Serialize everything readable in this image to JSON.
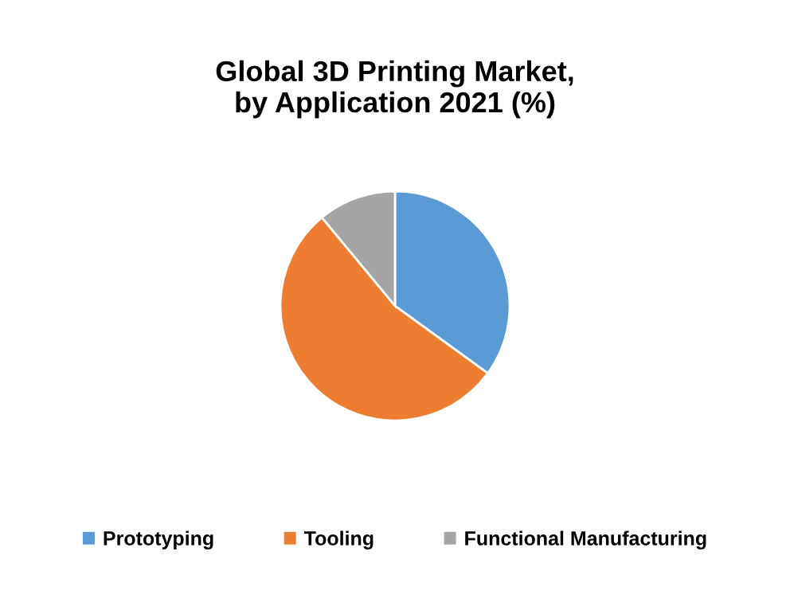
{
  "chart_data": {
    "type": "pie",
    "title": "Global 3D Printing Market,\nby Application 2021 (%)",
    "categories": [
      "Prototyping",
      "Tooling",
      "Functional Manufacturing"
    ],
    "values": [
      35,
      54,
      11
    ],
    "colors": [
      "#5b9bd5",
      "#ed7d31",
      "#a5a5a5"
    ],
    "legend": "bottom"
  }
}
